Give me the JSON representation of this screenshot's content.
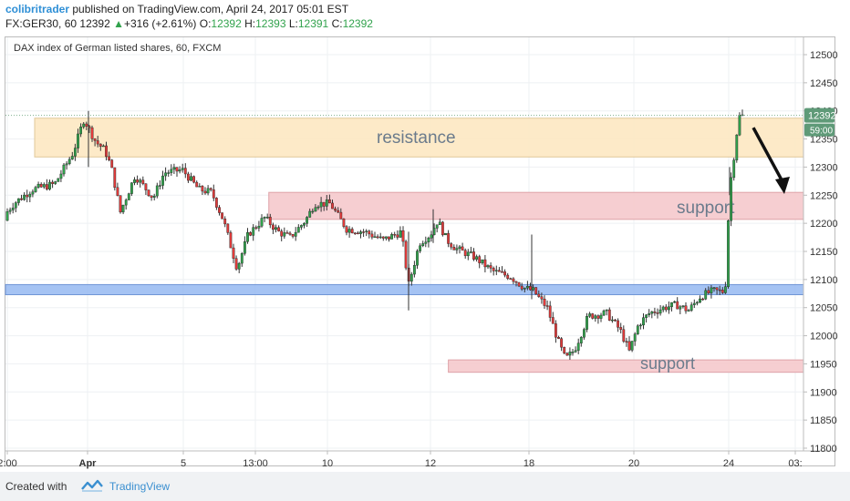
{
  "header": {
    "author": "colibritrader",
    "published": "published on TradingView.com, April 24, 2017 05:01 EST",
    "symbol": "FX:GER30, 60",
    "last": "12392",
    "change": "+316 (+2.61%)",
    "o_label": "O:",
    "o_value": "12392",
    "h_label": "H:",
    "h_value": "12393",
    "l_label": "L:",
    "l_value": "12391",
    "c_label": "C:",
    "c_value": "12392"
  },
  "plot_title": "DAX index of German listed shares, 60, FXCM",
  "footer": {
    "created_with": "Created with",
    "brand": "TradingView"
  },
  "colors": {
    "up": "#31a24c",
    "down": "#e23b3b",
    "wick": "#333333",
    "resistance_zone": "#fde8c2",
    "support_zone": "#f5c9cc",
    "level_zone": "#9bbcf2",
    "price_label": "#5f9a78",
    "accent": "#2e8fd6"
  },
  "chart_data": {
    "type": "candlestick",
    "title": "DAX index of German listed shares, 60, FXCM",
    "ylim": [
      11775,
      12525
    ],
    "y_ticks": [
      12500,
      12450,
      12400,
      12350,
      12300,
      12250,
      12200,
      12150,
      12100,
      12050,
      12000,
      11950,
      11900,
      11850,
      11800
    ],
    "x_ticks": [
      "2:00",
      "Apr",
      "5",
      "13:00",
      "10",
      "12",
      "18",
      "20",
      "24",
      "03:"
    ],
    "last_price": {
      "value": 12392,
      "label": "12392",
      "countdown": "59:00"
    },
    "zones": [
      {
        "name": "resistance",
        "label": "resistance",
        "kind": "resistance",
        "y1": 12318,
        "y2": 12387,
        "from": 0,
        "to": 1
      },
      {
        "name": "support",
        "label": "support",
        "kind": "support",
        "y1": 12207,
        "y2": 12255,
        "from": 0.33,
        "to": 1
      },
      {
        "name": "level",
        "label": "",
        "kind": "level",
        "y1": 12073,
        "y2": 12091,
        "from": 0,
        "to": 1
      },
      {
        "name": "support-low",
        "label": "support",
        "kind": "support",
        "y1": 11935,
        "y2": 11957,
        "from": 0.555,
        "to": 1
      }
    ],
    "anchors": [
      [
        0,
        12205
      ],
      [
        15,
        12235
      ],
      [
        35,
        12260
      ],
      [
        60,
        12270
      ],
      [
        80,
        12325
      ],
      [
        92,
        12385
      ],
      [
        105,
        12345
      ],
      [
        115,
        12330
      ],
      [
        122,
        12300
      ],
      [
        132,
        12220
      ],
      [
        148,
        12285
      ],
      [
        168,
        12245
      ],
      [
        180,
        12290
      ],
      [
        200,
        12295
      ],
      [
        218,
        12260
      ],
      [
        232,
        12255
      ],
      [
        245,
        12205
      ],
      [
        260,
        12120
      ],
      [
        272,
        12180
      ],
      [
        290,
        12210
      ],
      [
        305,
        12185
      ],
      [
        318,
        12175
      ],
      [
        335,
        12205
      ],
      [
        345,
        12235
      ],
      [
        362,
        12235
      ],
      [
        380,
        12190
      ],
      [
        400,
        12185
      ],
      [
        420,
        12170
      ],
      [
        440,
        12185
      ],
      [
        448,
        12090
      ],
      [
        460,
        12165
      ],
      [
        472,
        12180
      ],
      [
        480,
        12205
      ],
      [
        490,
        12170
      ],
      [
        500,
        12155
      ],
      [
        520,
        12140
      ],
      [
        540,
        12115
      ],
      [
        560,
        12105
      ],
      [
        575,
        12085
      ],
      [
        585,
        12080
      ],
      [
        592,
        12065
      ],
      [
        600,
        12050
      ],
      [
        612,
        11990
      ],
      [
        620,
        11958
      ],
      [
        630,
        11975
      ],
      [
        645,
        12035
      ],
      [
        665,
        12040
      ],
      [
        680,
        12010
      ],
      [
        690,
        11972
      ],
      [
        700,
        12020
      ],
      [
        712,
        12040
      ],
      [
        728,
        12050
      ],
      [
        742,
        12055
      ],
      [
        755,
        12045
      ],
      [
        768,
        12070
      ],
      [
        782,
        12080
      ],
      [
        795,
        12078
      ],
      [
        800,
        12262
      ],
      [
        804,
        12310
      ],
      [
        810,
        12390
      ],
      [
        818,
        12392
      ]
    ],
    "arrow": {
      "from": [
        826,
        12370
      ],
      "to": [
        860,
        12252
      ]
    }
  }
}
